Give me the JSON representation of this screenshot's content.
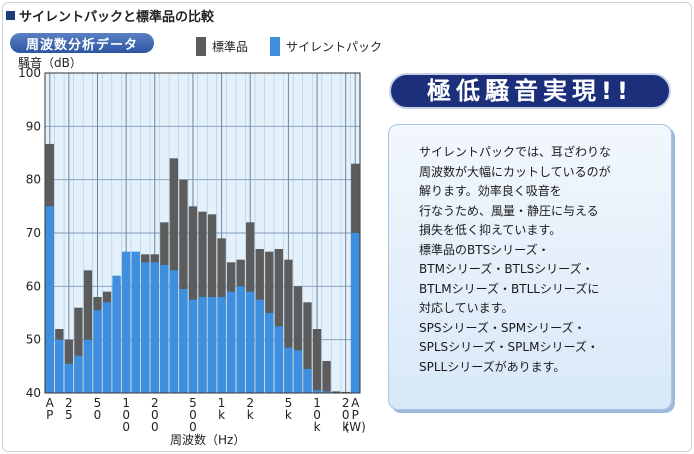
{
  "header": {
    "title": "サイレントパックと標準品の比較"
  },
  "chart_data": {
    "type": "bar",
    "title": "周波数分析データ",
    "ylabel": "騒音（dB）",
    "xlabel": "周波数（Hz）",
    "ylim": [
      40,
      100
    ],
    "yticks": [
      40,
      50,
      60,
      70,
      80,
      90,
      100
    ],
    "x_tick_labels": [
      {
        "label": "A P",
        "at": 0
      },
      {
        "label": "2 5",
        "at": 2
      },
      {
        "label": "5 0",
        "at": 5
      },
      {
        "label": "1 0 0",
        "at": 8
      },
      {
        "label": "2 0 0",
        "at": 11
      },
      {
        "label": "5 0 0",
        "at": 15
      },
      {
        "label": "1 k",
        "at": 18
      },
      {
        "label": "2 k",
        "at": 21
      },
      {
        "label": "5 k",
        "at": 25
      },
      {
        "label": "1 0 k",
        "at": 28
      },
      {
        "label": "2 0 k",
        "at": 31
      },
      {
        "label": "A P (W)",
        "at": 32
      }
    ],
    "bar_count": 33,
    "series": [
      {
        "name": "標準品",
        "color": "#5c5c5c",
        "values": [
          86.7,
          52.0,
          50.0,
          56.0,
          63.0,
          58.0,
          59.0,
          60.0,
          65.0,
          66.0,
          66.0,
          66.0,
          72.0,
          84.0,
          80.0,
          75.0,
          74.0,
          73.5,
          69.0,
          64.5,
          65.0,
          72.0,
          67.0,
          66.5,
          67.0,
          65.0,
          60.0,
          57.0,
          52.0,
          46.0,
          40.3,
          40.2,
          83.0
        ]
      },
      {
        "name": "サイレントパック",
        "color": "#3f8fe0",
        "values": [
          75.0,
          50.0,
          45.5,
          47.0,
          50.0,
          55.5,
          57.0,
          62.0,
          66.5,
          66.5,
          64.5,
          64.5,
          64.0,
          63.0,
          59.5,
          57.5,
          58.0,
          58.0,
          58.0,
          59.0,
          60.0,
          59.0,
          57.5,
          55.0,
          52.5,
          48.5,
          48.0,
          44.5,
          40.5,
          40.3,
          40.0,
          40.0,
          70.0
        ]
      }
    ]
  },
  "callout": {
    "text": "極低騒音実現!!"
  },
  "info": {
    "text": "サイレントパックでは、耳ざわりな\n周波数が大幅にカットしているのが\n解ります。効率良く吸音を\n行なうため、風量・静圧に与える\n損失を低く抑えています。\n標準品のBTSシリーズ・\nBTMシリーズ・BTLSシリーズ・\nBTLMシリーズ・BTLLシリーズに\n対応しています。\nSPSシリーズ・SPMシリーズ・\nSPLSシリーズ・SPLMシリーズ・\nSPLLシリーズがあります。"
  }
}
